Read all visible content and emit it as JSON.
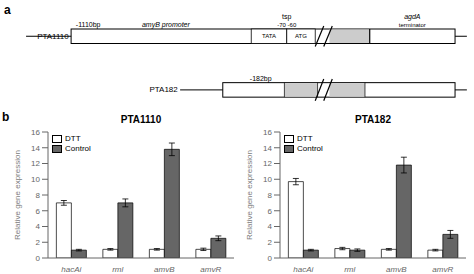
{
  "chart_data": [
    {
      "type": "bar",
      "title": "PTA1110",
      "categories": [
        "hacAi",
        "rml",
        "amyB",
        "amyR"
      ],
      "series": [
        {
          "name": "DTT",
          "color": "#ffffff",
          "values": [
            7.0,
            1.1,
            1.1,
            1.1
          ],
          "errors": [
            0.3,
            0.1,
            0.1,
            0.15
          ]
        },
        {
          "name": "Control",
          "color": "#666666",
          "values": [
            1.0,
            7.0,
            13.8,
            2.5
          ],
          "errors": [
            0.1,
            0.5,
            0.8,
            0.3
          ]
        }
      ],
      "ylabel": "Relative gene expression",
      "ylim": [
        0,
        16
      ],
      "yticks": [
        0,
        2,
        4,
        6,
        8,
        10,
        12,
        14,
        16
      ],
      "grid": false,
      "legend": "upper left",
      "annotations": [
        "a",
        "PTA1110",
        "-1110bp",
        "amyB promoter",
        "tsp",
        "-70 -60",
        "agdA",
        "terminator",
        "TATA",
        "ATG",
        "PTA182",
        "-182bp",
        "b"
      ]
    },
    {
      "type": "bar",
      "title": "PTA182",
      "categories": [
        "hacAi",
        "rml",
        "amyB",
        "amyR"
      ],
      "series": [
        {
          "name": "DTT",
          "color": "#ffffff",
          "values": [
            9.7,
            1.2,
            1.1,
            1.0
          ],
          "errors": [
            0.4,
            0.15,
            0.1,
            0.1
          ]
        },
        {
          "name": "Control",
          "color": "#666666",
          "values": [
            1.0,
            1.0,
            11.8,
            3.0
          ],
          "errors": [
            0.1,
            0.15,
            1.0,
            0.5
          ]
        }
      ],
      "ylabel": "Relative gene expression",
      "ylim": [
        0,
        16
      ],
      "yticks": [
        0,
        2,
        4,
        6,
        8,
        10,
        12,
        14,
        16
      ],
      "grid": false,
      "legend": "upper left"
    }
  ]
}
